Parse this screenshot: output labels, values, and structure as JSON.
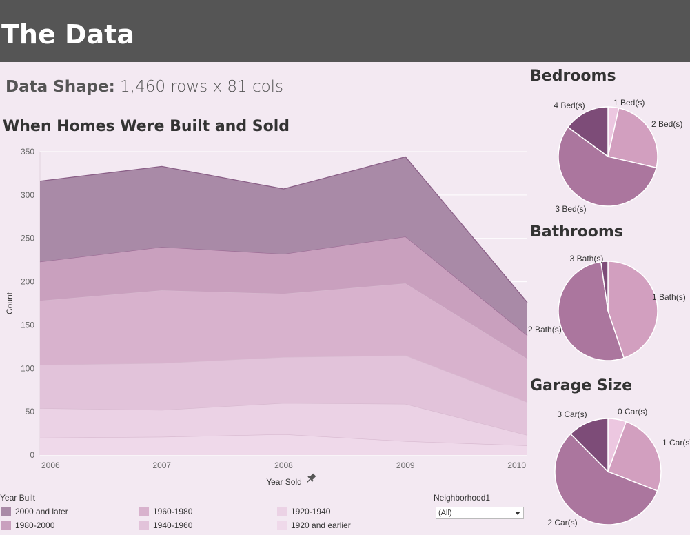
{
  "header": {
    "title": "The Data"
  },
  "data_shape": {
    "label": "Data Shape:",
    "value": "1,460 rows x 81 cols"
  },
  "chart_data": [
    {
      "type": "area",
      "title": "When Homes Were Built and Sold",
      "xlabel": "Year Sold",
      "ylabel": "Count",
      "x": [
        "2006",
        "2007",
        "2008",
        "2009",
        "2010"
      ],
      "ylim": [
        0,
        350
      ],
      "yticks": [
        0,
        50,
        100,
        150,
        200,
        250,
        300,
        350
      ],
      "stacked": true,
      "legend_title": "Year Built",
      "series": [
        {
          "name": "1920 and earlier",
          "values": [
            20,
            21,
            24,
            16,
            11
          ],
          "color": "#efd9ea"
        },
        {
          "name": "1920-1940",
          "values": [
            34,
            31,
            36,
            43,
            12
          ],
          "color": "#ebd2e5"
        },
        {
          "name": "1940-1960",
          "values": [
            50,
            54,
            53,
            56,
            38
          ],
          "color": "#e2c3da"
        },
        {
          "name": "1960-1980",
          "values": [
            74,
            84,
            73,
            83,
            50
          ],
          "color": "#d8b2cd"
        },
        {
          "name": "1980-2000",
          "values": [
            45,
            50,
            46,
            54,
            27
          ],
          "color": "#c9a0be"
        },
        {
          "name": "2000 and later",
          "values": [
            93,
            93,
            75,
            92,
            38
          ],
          "color": "#a98aa7"
        }
      ]
    },
    {
      "type": "pie",
      "title": "Bedrooms",
      "labels": [
        "1 Bed(s)",
        "2 Bed(s)",
        "3 Bed(s)",
        "4 Bed(s)"
      ],
      "values": [
        50,
        358,
        804,
        213
      ],
      "colors": [
        "#ecc7e0",
        "#d29fbf",
        "#ab769e",
        "#7d4c78"
      ]
    },
    {
      "type": "pie",
      "title": "Bathrooms",
      "labels": [
        "1 Bath(s)",
        "2 Bath(s)",
        "3 Bath(s)"
      ],
      "values": [
        650,
        768,
        33
      ],
      "colors": [
        "#d29fbf",
        "#ab769e",
        "#7d4c78"
      ]
    },
    {
      "type": "pie",
      "title": "Garage Size",
      "labels": [
        "0 Car(s)",
        "1 Car(s)",
        "2 Car(s)",
        "3 Car(s)"
      ],
      "values": [
        81,
        369,
        824,
        181
      ],
      "colors": [
        "#ecc7e0",
        "#d29fbf",
        "#ab769e",
        "#7d4c78"
      ]
    }
  ],
  "neighborhood_filter": {
    "label": "Neighborhood1",
    "selected": "(All)"
  }
}
